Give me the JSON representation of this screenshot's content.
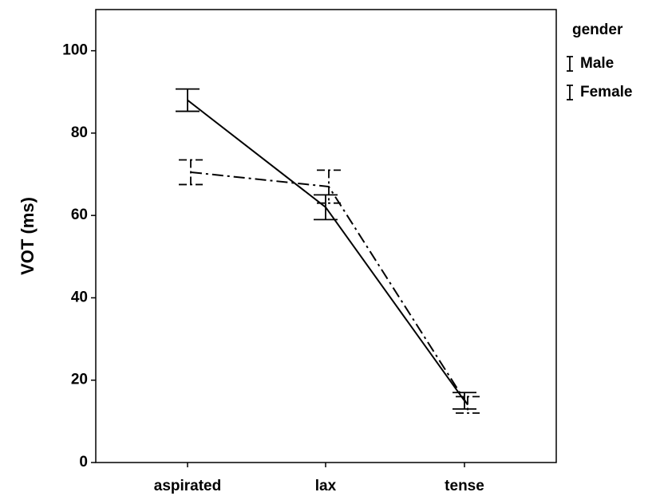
{
  "chart_data": {
    "type": "line",
    "y_label": "VOT (ms)",
    "categories": [
      "aspirated",
      "lax",
      "tense"
    ],
    "legend_title": "gender",
    "legend": "outside-top-right",
    "series": [
      {
        "name": "Male",
        "color": "#000000",
        "line_style": "solid",
        "values": [
          88,
          62,
          15
        ],
        "errors": [
          2.7,
          3,
          2
        ]
      },
      {
        "name": "Female",
        "color": "#000000",
        "line_style": "dashdot",
        "values": [
          70.5,
          67,
          14
        ],
        "errors": [
          3,
          4,
          2
        ]
      }
    ],
    "ylim": [
      0,
      110
    ],
    "yticks": [
      0,
      20,
      40,
      60,
      80,
      100
    ],
    "grid": false
  }
}
